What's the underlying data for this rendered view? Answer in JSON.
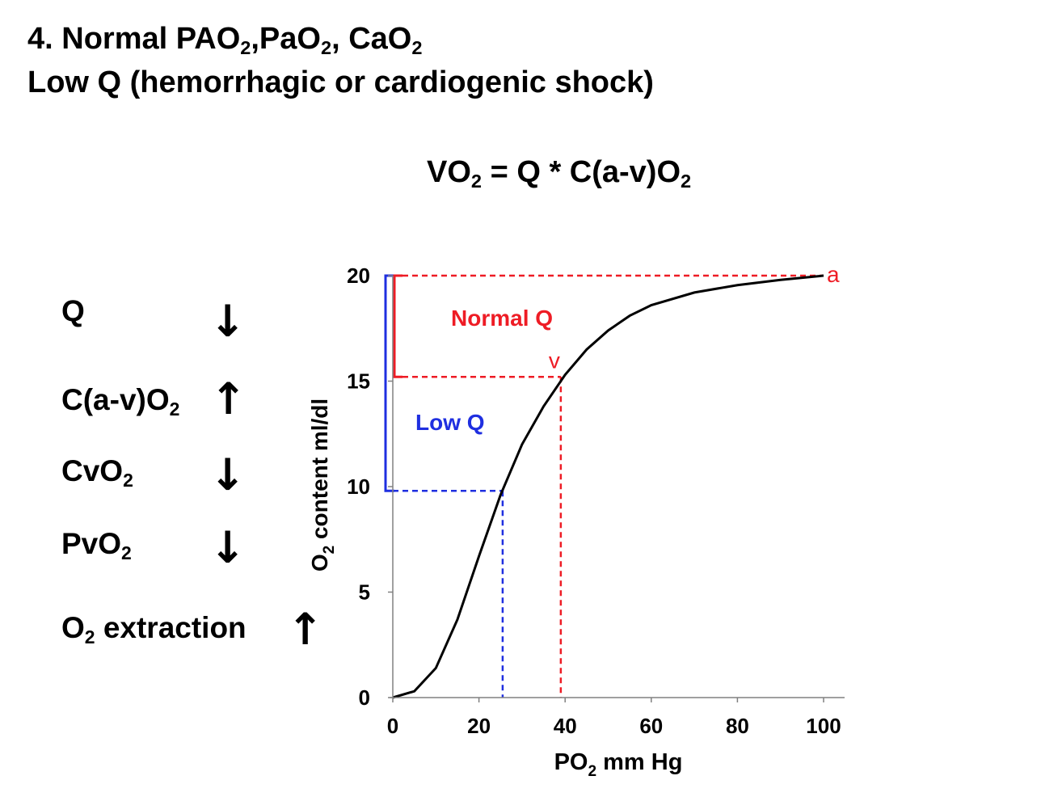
{
  "title_line1": {
    "prefix": "4. Normal PAO",
    "s1": "2",
    "mid1": ",PaO",
    "s2": "2",
    "mid2": ", CaO",
    "s3": "2"
  },
  "title_line2": "Low Q (hemorrhagic or cardiogenic shock)",
  "equation": {
    "p1": "VO",
    "s1": "2",
    "p2": " = Q * C(a-v)O",
    "s2": "2"
  },
  "variables": [
    {
      "text": "Q",
      "sub": "",
      "suffix": "",
      "direction": "down",
      "arrow": "↓"
    },
    {
      "text": "C(a-v)O",
      "sub": "2",
      "suffix": "",
      "direction": "up",
      "arrow": "↑"
    },
    {
      "text": "CvO",
      "sub": "2",
      "suffix": "",
      "direction": "down",
      "arrow": "↓"
    },
    {
      "text": "PvO",
      "sub": "2",
      "suffix": "",
      "direction": "down",
      "arrow": "↓"
    },
    {
      "text": "O",
      "sub": "2",
      "suffix": " extraction",
      "direction": "up",
      "arrow": "↑"
    }
  ],
  "colors": {
    "curve": "#000000",
    "normal": "#ee1c25",
    "low": "#1f2fe0",
    "axis": "#808080"
  },
  "chart_data": {
    "type": "line",
    "xlabel": {
      "prefix": "PO",
      "sub": "2",
      "suffix": " mm Hg"
    },
    "ylabel": {
      "prefix": "O",
      "sub": "2",
      "suffix": " content ml/dl"
    },
    "xlim": [
      0,
      100
    ],
    "ylim": [
      0,
      20
    ],
    "xticks": [
      0,
      20,
      40,
      60,
      80,
      100
    ],
    "yticks": [
      0,
      5,
      10,
      15,
      20
    ],
    "grid": false,
    "series": [
      {
        "x": [
          0,
          5,
          10,
          15,
          20,
          25,
          30,
          35,
          40,
          45,
          50,
          55,
          60,
          70,
          80,
          90,
          100
        ],
        "y": [
          0,
          0.3,
          1.4,
          3.7,
          6.7,
          9.6,
          12.0,
          13.8,
          15.3,
          16.5,
          17.4,
          18.1,
          18.6,
          19.2,
          19.55,
          19.8,
          20.0
        ]
      }
    ],
    "annotations": {
      "arterial_point": {
        "label": "a",
        "x": 100,
        "y": 20
      },
      "normal_venous_point": {
        "label": "v",
        "x": 39,
        "y": 15.2
      },
      "low_q_venous_point": {
        "x": 25.5,
        "y": 9.8
      },
      "normal_label": "Normal Q",
      "low_label": "Low Q"
    }
  }
}
